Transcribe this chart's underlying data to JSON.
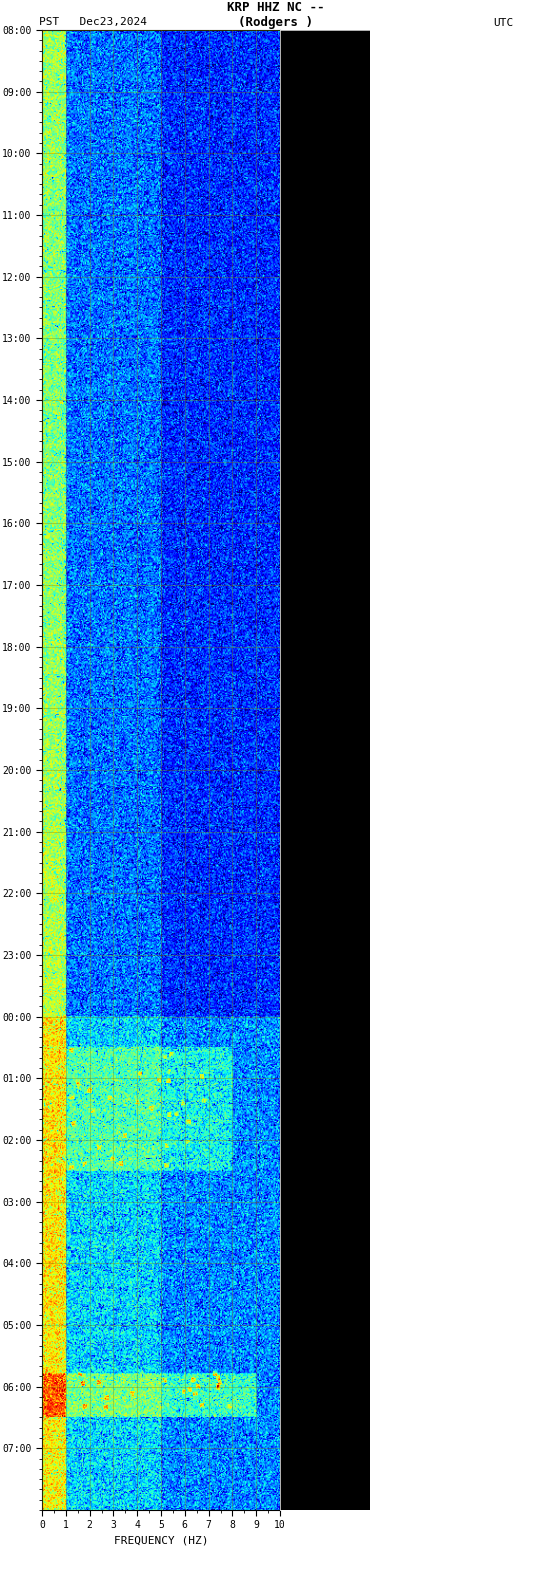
{
  "title_line1": "KRP HHZ NC --",
  "title_line2": "(Rodgers )",
  "left_label": "PST   Dec23,2024",
  "right_label": "UTC",
  "xlabel": "FREQUENCY (HZ)",
  "left_yticks": [
    "00:00",
    "01:00",
    "02:00",
    "03:00",
    "04:00",
    "05:00",
    "06:00",
    "07:00",
    "08:00",
    "09:00",
    "10:00",
    "11:00",
    "12:00",
    "13:00",
    "14:00",
    "15:00",
    "16:00",
    "17:00",
    "18:00",
    "19:00",
    "20:00",
    "21:00",
    "22:00",
    "23:00"
  ],
  "right_yticks": [
    "08:00",
    "09:00",
    "10:00",
    "11:00",
    "12:00",
    "13:00",
    "14:00",
    "15:00",
    "16:00",
    "17:00",
    "18:00",
    "19:00",
    "20:00",
    "21:00",
    "22:00",
    "23:00",
    "00:00",
    "01:00",
    "02:00",
    "03:00",
    "04:00",
    "05:00",
    "06:00",
    "07:00"
  ],
  "xmin": 0,
  "xmax": 10,
  "ymin": 0,
  "ymax": 24,
  "bg_color": "#000000",
  "plot_bg": "#000000",
  "white_area_color": "#ffffff",
  "black_panel_color": "#000000",
  "grid_color": "#808000",
  "grid_alpha": 0.5
}
